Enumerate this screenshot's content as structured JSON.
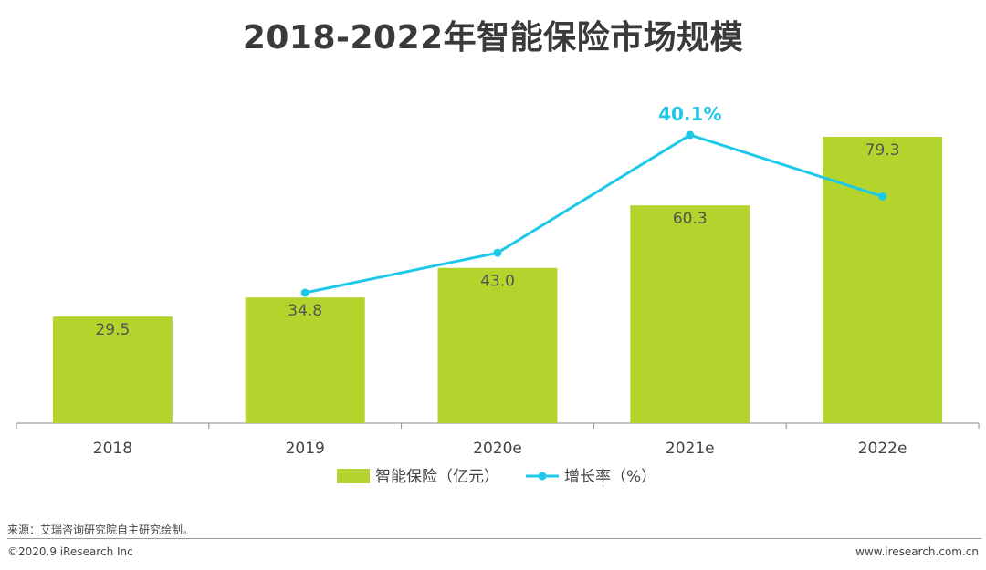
{
  "chart_data": {
    "type": "bar",
    "title": "2018-2022年智能保险市场规模",
    "categories": [
      "2018",
      "2019",
      "2020e",
      "2021e",
      "2022e"
    ],
    "series": [
      {
        "name": "智能保险（亿元）",
        "type": "bar",
        "values": [
          29.5,
          34.8,
          43.0,
          60.3,
          79.3
        ],
        "labels": [
          "29.5",
          "34.8",
          "43.0",
          "60.3",
          "79.3"
        ],
        "color": "#b3d42c"
      },
      {
        "name": "增长率（%）",
        "type": "line",
        "values": [
          null,
          18.0,
          23.6,
          40.1,
          31.5
        ],
        "labels": [
          "",
          "",
          "",
          "40.1%",
          ""
        ],
        "color": "#1ec8e8"
      }
    ],
    "ylim_bar": [
      0,
      85
    ],
    "ylim_line": [
      0,
      45
    ],
    "legend_position": "bottom",
    "grid": false
  },
  "footer": {
    "source": "来源：艾瑞咨询研究院自主研究绘制。",
    "copyright": "©2020.9 iResearch Inc",
    "website": "www.iresearch.com.cn"
  }
}
